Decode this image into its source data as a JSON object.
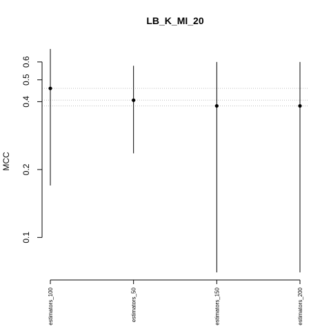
{
  "chart_data": {
    "type": "scatter",
    "title": "LB_K_MI_20",
    "xlabel": "",
    "ylabel": "MCC",
    "categories": [
      "estimators_100",
      "estimators_50",
      "estimators_150",
      "estimators_200"
    ],
    "series": [
      {
        "values": [
          0.458,
          0.406,
          0.383,
          0.383
        ],
        "lower": [
          0.17,
          0.236,
          0.07,
          0.07
        ],
        "upper": [
          0.685,
          0.577,
          0.6,
          0.6
        ]
      }
    ],
    "reference_lines": [
      0.458,
      0.406,
      0.383
    ],
    "yticks": [
      0.1,
      0.2,
      0.4,
      0.5,
      0.6
    ],
    "ylim": [
      0.07,
      0.685
    ],
    "grid": false,
    "colors": {
      "points": "#000000",
      "bars": "#000000",
      "reference": "#bebebe"
    }
  }
}
